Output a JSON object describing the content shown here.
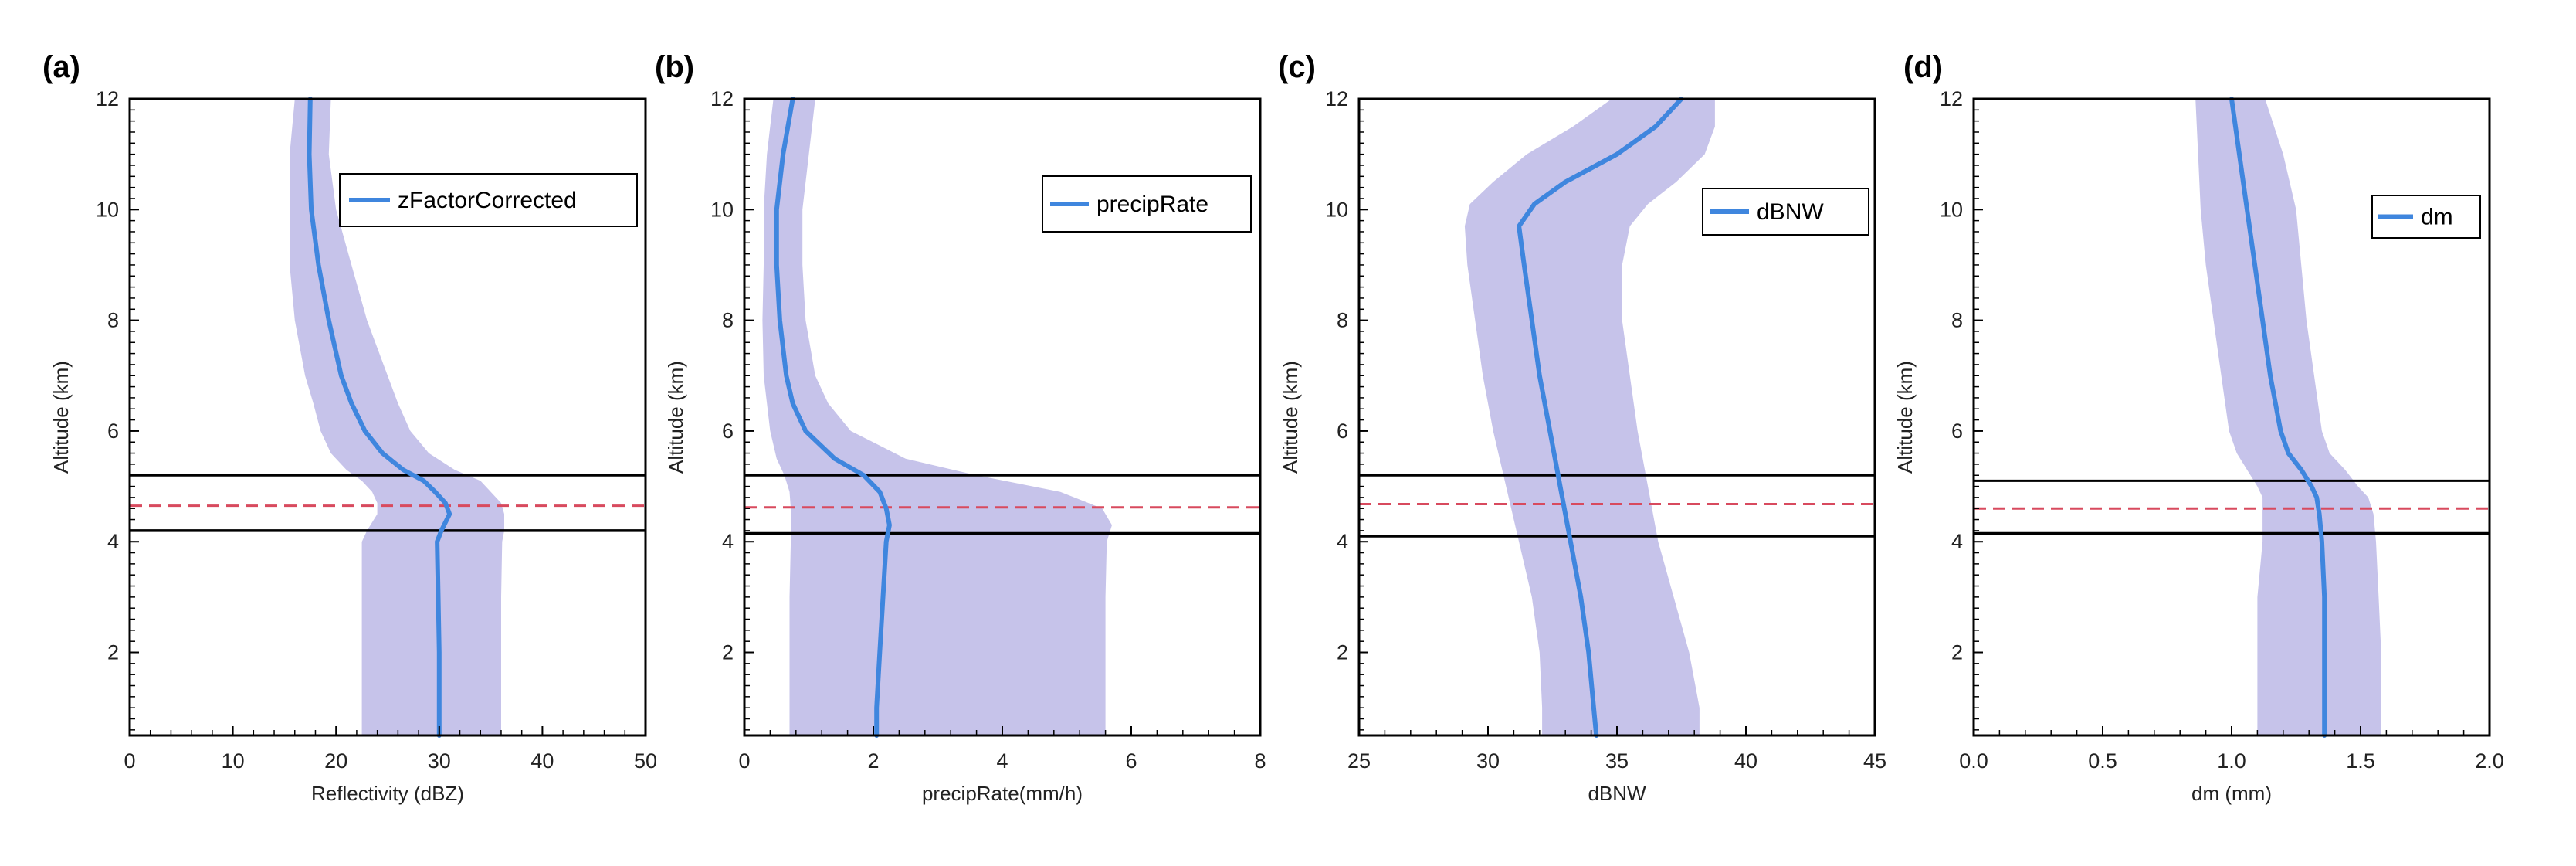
{
  "colors": {
    "line": "#3f86de",
    "band": "#c6c3ea",
    "melt_line": "#000000",
    "freezing_level": "#d84a5e"
  },
  "chart_data": [
    {
      "type": "line",
      "panel_label": "(a)",
      "series_name": "zFactorCorrected",
      "xlabel": "Reflectivity (dBZ)",
      "ylabel": "Altitude (km)",
      "xlim": [
        0,
        50
      ],
      "ylim": [
        0.5,
        12
      ],
      "xticks": [
        0,
        10,
        20,
        30,
        40,
        50
      ],
      "xtick_labels": [
        "0",
        "10",
        "20",
        "30",
        "40",
        "50"
      ],
      "yticks": [
        2,
        4,
        6,
        8,
        10,
        12
      ],
      "ytick_labels": [
        "2",
        "4",
        "6",
        "8",
        "10",
        "12"
      ],
      "altitude": [
        0.5,
        1,
        2,
        3,
        4,
        4.2,
        4.5,
        4.7,
        4.9,
        5.1,
        5.3,
        5.6,
        6,
        6.5,
        7,
        8,
        9,
        10,
        11,
        12
      ],
      "mean": [
        30,
        30,
        30,
        29.9,
        29.8,
        30.2,
        31,
        30.6,
        29.6,
        28.5,
        26.5,
        24.5,
        22.8,
        21.5,
        20.5,
        19.3,
        18.3,
        17.6,
        17.4,
        17.5
      ],
      "band_low": [
        22.5,
        22.5,
        22.5,
        22.5,
        22.5,
        23,
        24,
        24,
        23.5,
        22.5,
        21,
        19.5,
        18.5,
        17.8,
        17,
        16,
        15.5,
        15.5,
        15.5,
        16
      ],
      "band_high": [
        36,
        36,
        36,
        36,
        36.1,
        36.3,
        36.3,
        36,
        35,
        34,
        31.5,
        29,
        27.2,
        26,
        25,
        23,
        21.5,
        20,
        19.3,
        19.5
      ],
      "melt_top": 5.2,
      "melt_bottom": 4.2,
      "freezing_level": 4.65
    },
    {
      "type": "line",
      "panel_label": "(b)",
      "series_name": "precipRate",
      "xlabel": "precipRate(mm/h)",
      "ylabel": "Altitude (km)",
      "xlim": [
        0,
        8
      ],
      "ylim": [
        0.5,
        12
      ],
      "xticks": [
        0,
        2,
        4,
        6,
        8
      ],
      "xtick_labels": [
        "0",
        "2",
        "4",
        "6",
        "8"
      ],
      "yticks": [
        2,
        4,
        6,
        8,
        10,
        12
      ],
      "ytick_labels": [
        "2",
        "4",
        "6",
        "8",
        "10",
        "12"
      ],
      "altitude": [
        0.5,
        1,
        2,
        3,
        4,
        4.3,
        4.6,
        4.9,
        5.2,
        5.5,
        6,
        6.5,
        7,
        8,
        9,
        10,
        11,
        12
      ],
      "mean": [
        2.05,
        2.05,
        2.1,
        2.15,
        2.2,
        2.25,
        2.2,
        2.1,
        1.85,
        1.4,
        0.95,
        0.75,
        0.65,
        0.55,
        0.5,
        0.5,
        0.6,
        0.75
      ],
      "band_low": [
        0.7,
        0.7,
        0.7,
        0.7,
        0.72,
        0.72,
        0.72,
        0.7,
        0.62,
        0.5,
        0.4,
        0.35,
        0.3,
        0.28,
        0.3,
        0.3,
        0.35,
        0.45
      ],
      "band_high": [
        5.6,
        5.6,
        5.6,
        5.6,
        5.62,
        5.7,
        5.55,
        4.9,
        3.6,
        2.5,
        1.65,
        1.3,
        1.1,
        0.95,
        0.9,
        0.9,
        1.0,
        1.1
      ],
      "melt_top": 5.2,
      "melt_bottom": 4.15,
      "freezing_level": 4.62
    },
    {
      "type": "line",
      "panel_label": "(c)",
      "series_name": "dBNW",
      "xlabel": "dBNW",
      "ylabel": "Altitude (km)",
      "xlim": [
        25,
        45
      ],
      "ylim": [
        0.5,
        12
      ],
      "xticks": [
        25,
        30,
        35,
        40,
        45
      ],
      "xtick_labels": [
        "25",
        "30",
        "35",
        "40",
        "45"
      ],
      "yticks": [
        2,
        4,
        6,
        8,
        10,
        12
      ],
      "ytick_labels": [
        "2",
        "4",
        "6",
        "8",
        "10",
        "12"
      ],
      "altitude": [
        0.5,
        1,
        2,
        3,
        4,
        5,
        6,
        7,
        8,
        9,
        9.7,
        10.1,
        10.5,
        11,
        11.5,
        12
      ],
      "mean": [
        34.2,
        34.1,
        33.9,
        33.6,
        33.2,
        32.8,
        32.4,
        32,
        31.7,
        31.4,
        31.2,
        31.8,
        33,
        35,
        36.5,
        37.5
      ],
      "band_low": [
        32.1,
        32.1,
        32,
        31.7,
        31.2,
        30.7,
        30.2,
        29.8,
        29.5,
        29.2,
        29.1,
        29.3,
        30.2,
        31.5,
        33.3,
        34.8
      ],
      "band_high": [
        38.2,
        38.2,
        37.8,
        37.2,
        36.6,
        36.2,
        35.8,
        35.5,
        35.2,
        35.2,
        35.5,
        36.2,
        37.3,
        38.4,
        38.8,
        38.8
      ],
      "melt_top": 5.2,
      "melt_bottom": 4.1,
      "freezing_level": 4.68
    },
    {
      "type": "line",
      "panel_label": "(d)",
      "series_name": "dm",
      "xlabel": "dm (mm)",
      "ylabel": "Altitude (km)",
      "xlim": [
        0,
        2
      ],
      "ylim": [
        0.5,
        12
      ],
      "xticks": [
        0,
        0.5,
        1,
        1.5,
        2
      ],
      "xtick_labels": [
        "0.0",
        "0.5",
        "1.0",
        "1.5",
        "2.0"
      ],
      "yticks": [
        2,
        4,
        6,
        8,
        10,
        12
      ],
      "ytick_labels": [
        "2",
        "4",
        "6",
        "8",
        "10",
        "12"
      ],
      "altitude": [
        0.5,
        1,
        2,
        3,
        4,
        4.5,
        4.8,
        5,
        5.3,
        5.6,
        6,
        7,
        8,
        9,
        10,
        11,
        12
      ],
      "mean": [
        1.36,
        1.36,
        1.36,
        1.36,
        1.35,
        1.34,
        1.33,
        1.31,
        1.27,
        1.22,
        1.19,
        1.15,
        1.12,
        1.09,
        1.06,
        1.03,
        1.0
      ],
      "band_low": [
        1.1,
        1.1,
        1.1,
        1.1,
        1.12,
        1.12,
        1.12,
        1.1,
        1.06,
        1.02,
        0.99,
        0.96,
        0.93,
        0.9,
        0.88,
        0.87,
        0.86
      ],
      "band_high": [
        1.58,
        1.58,
        1.58,
        1.57,
        1.56,
        1.55,
        1.53,
        1.49,
        1.44,
        1.38,
        1.35,
        1.32,
        1.29,
        1.27,
        1.25,
        1.2,
        1.13
      ],
      "melt_top": 5.1,
      "melt_bottom": 4.15,
      "freezing_level": 4.6
    }
  ]
}
